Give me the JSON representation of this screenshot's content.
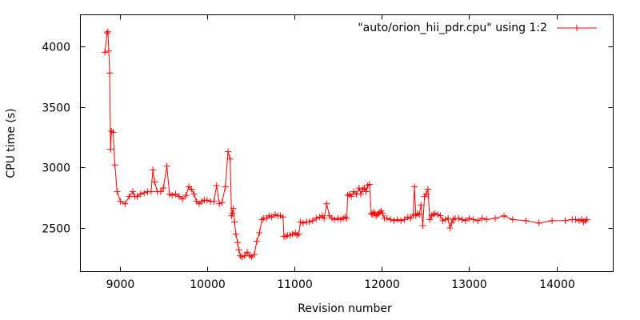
{
  "chart_data": {
    "type": "line",
    "title": "",
    "xlabel": "Revision number",
    "ylabel": "CPU time (s)",
    "xlim": [
      8550,
      14650
    ],
    "ylim": [
      2140,
      4260
    ],
    "xticks": [
      9000,
      10000,
      11000,
      12000,
      13000,
      14000
    ],
    "yticks": [
      2500,
      3000,
      3500,
      4000
    ],
    "grid": false,
    "legend_position": "top-right",
    "series": [
      {
        "name": "\"auto/orion_hii_pdr.cpu\" using 1:2",
        "color": "#ff0000",
        "marker": "plus",
        "x": [
          8830,
          8855,
          8865,
          8875,
          8885,
          8895,
          8905,
          8925,
          8945,
          8970,
          9010,
          9060,
          9110,
          9150,
          9175,
          9200,
          9240,
          9280,
          9320,
          9360,
          9380,
          9400,
          9430,
          9470,
          9500,
          9540,
          9570,
          9600,
          9640,
          9680,
          9720,
          9760,
          9790,
          9820,
          9850,
          9880,
          9910,
          9940,
          9970,
          10000,
          10040,
          10080,
          10110,
          10140,
          10170,
          10210,
          10240,
          10265,
          10280,
          10290,
          10300,
          10315,
          10330,
          10350,
          10365,
          10380,
          10400,
          10430,
          10460,
          10490,
          10510,
          10540,
          10570,
          10600,
          10630,
          10650,
          10680,
          10710,
          10740,
          10780,
          10810,
          10840,
          10870,
          10880,
          10900,
          10920,
          10950,
          10980,
          11010,
          11030,
          11050,
          11070,
          11100,
          11140,
          11170,
          11210,
          11250,
          11290,
          11320,
          11340,
          11370,
          11400,
          11430,
          11460,
          11500,
          11530,
          11560,
          11580,
          11600,
          11610,
          11630,
          11650,
          11680,
          11710,
          11740,
          11760,
          11780,
          11800,
          11820,
          11840,
          11860,
          11880,
          11890,
          11905,
          11920,
          11935,
          11950,
          11965,
          11980,
          11995,
          12010,
          12030,
          12060,
          12100,
          12140,
          12180,
          12220,
          12260,
          12300,
          12330,
          12360,
          12375,
          12390,
          12410,
          12430,
          12450,
          12470,
          12490,
          12510,
          12530,
          12550,
          12570,
          12590,
          12610,
          12640,
          12670,
          12700,
          12730,
          12760,
          12780,
          12800,
          12820,
          12840,
          12880,
          12920,
          12960,
          13000,
          13050,
          13100,
          13150,
          13200,
          13300,
          13400,
          13500,
          13650,
          13800,
          13950,
          14100,
          14180,
          14220,
          14260,
          14290,
          14310,
          14330,
          14350
        ],
        "y": [
          3950,
          4110,
          4120,
          3960,
          3780,
          3150,
          3300,
          3290,
          3020,
          2800,
          2720,
          2700,
          2760,
          2800,
          2760,
          2760,
          2780,
          2790,
          2800,
          2800,
          2980,
          2880,
          2800,
          2800,
          2830,
          3010,
          2780,
          2770,
          2780,
          2760,
          2740,
          2770,
          2840,
          2820,
          2780,
          2720,
          2700,
          2720,
          2730,
          2730,
          2720,
          2720,
          2850,
          2700,
          2710,
          2840,
          3130,
          3070,
          2600,
          2620,
          2660,
          2550,
          2450,
          2380,
          2320,
          2270,
          2260,
          2270,
          2300,
          2270,
          2260,
          2280,
          2390,
          2460,
          2570,
          2580,
          2580,
          2600,
          2590,
          2610,
          2600,
          2600,
          2590,
          2430,
          2430,
          2440,
          2440,
          2450,
          2460,
          2440,
          2450,
          2550,
          2540,
          2550,
          2550,
          2560,
          2580,
          2590,
          2600,
          2580,
          2700,
          2600,
          2580,
          2570,
          2580,
          2570,
          2580,
          2590,
          2580,
          2770,
          2780,
          2760,
          2800,
          2780,
          2830,
          2780,
          2820,
          2830,
          2800,
          2850,
          2860,
          2620,
          2610,
          2630,
          2620,
          2600,
          2610,
          2620,
          2630,
          2640,
          2620,
          2580,
          2580,
          2570,
          2560,
          2570,
          2560,
          2570,
          2590,
          2580,
          2610,
          2840,
          2600,
          2620,
          2610,
          2690,
          2520,
          2760,
          2780,
          2820,
          2570,
          2600,
          2610,
          2620,
          2610,
          2600,
          2560,
          2570,
          2580,
          2500,
          2540,
          2570,
          2580,
          2580,
          2570,
          2560,
          2580,
          2570,
          2560,
          2580,
          2570,
          2580,
          2600,
          2570,
          2560,
          2540,
          2560,
          2560,
          2570,
          2570,
          2560,
          2570,
          2550,
          2560,
          2570
        ]
      }
    ]
  }
}
